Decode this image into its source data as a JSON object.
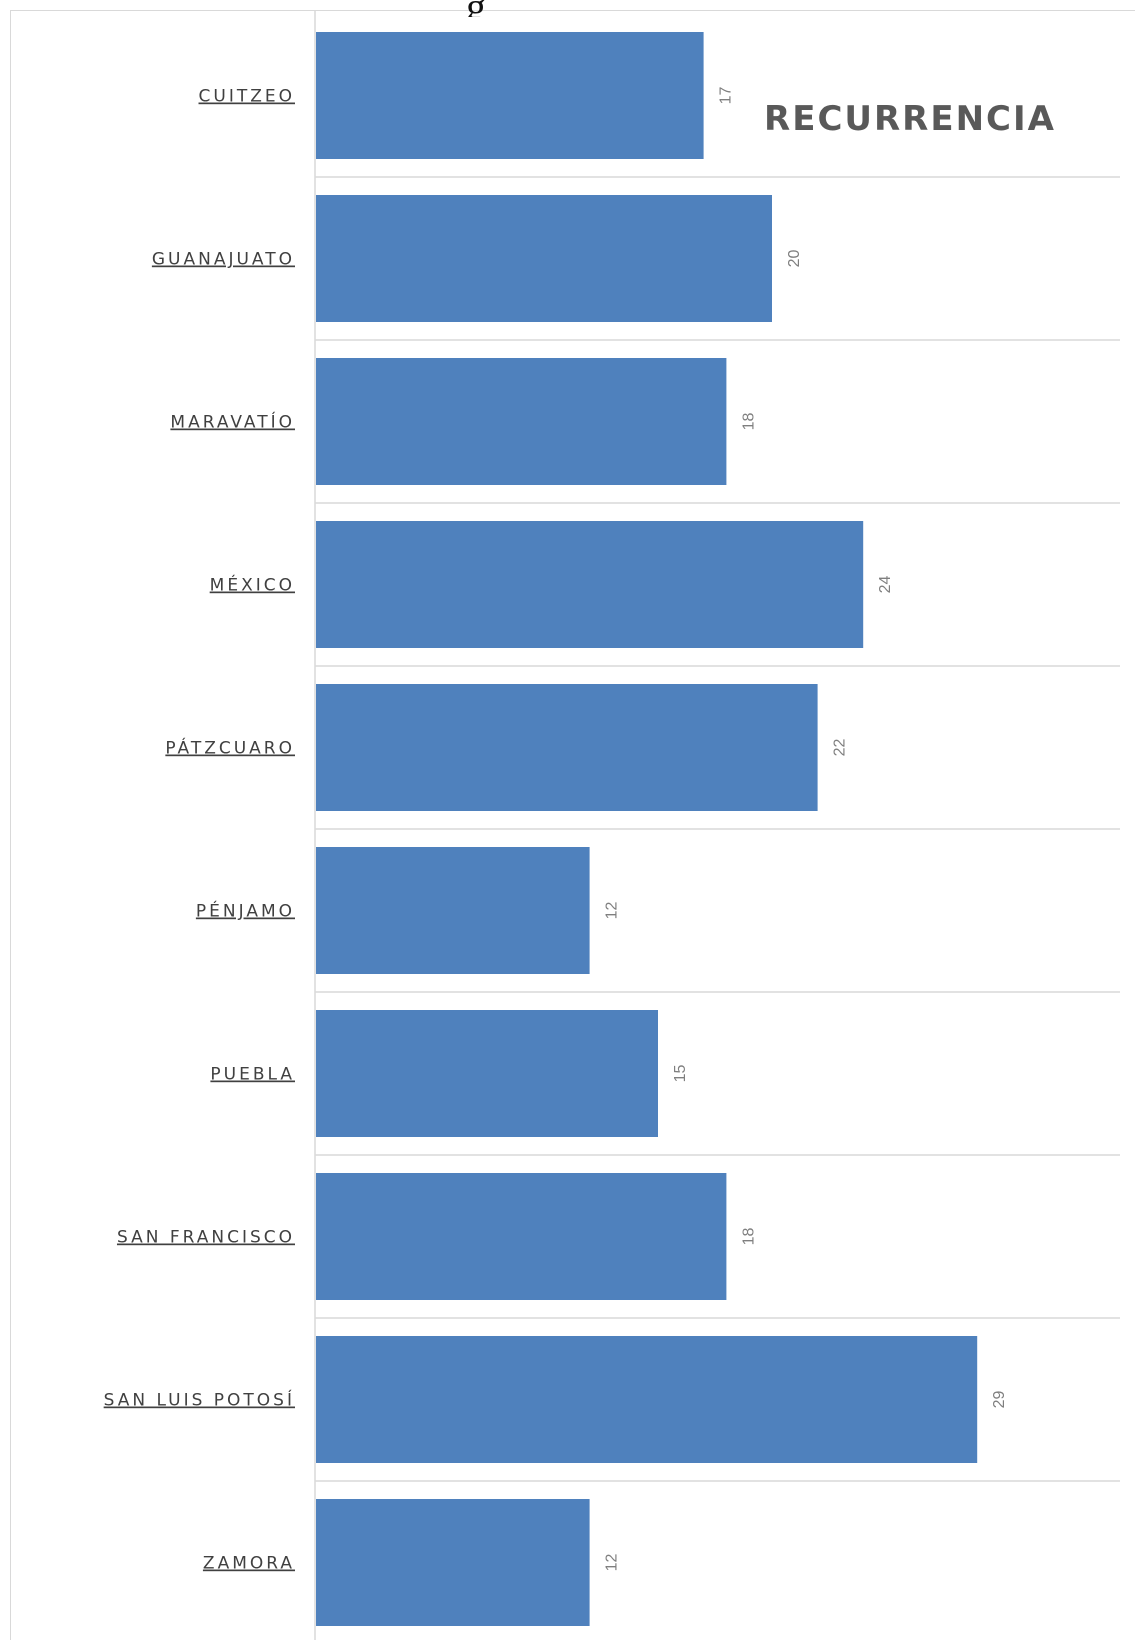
{
  "chart_data": {
    "type": "bar",
    "orientation": "horizontal",
    "title": "RECURRENCIA",
    "categories": [
      "CUITZEO",
      "GUANAJUATO",
      "MARAVATÍO",
      "MÉXICO",
      "PÁTZCUARO",
      "PÉNJAMO",
      "PUEBLA",
      "SAN FRANCISCO",
      "SAN LUIS POTOSÍ",
      "ZAMORA"
    ],
    "values": [
      17,
      20,
      18,
      24,
      22,
      12,
      15,
      18,
      29,
      12
    ],
    "xlim": [
      0,
      35
    ],
    "grid": true,
    "bar_color": "#4f81bd",
    "data_labels": true
  }
}
